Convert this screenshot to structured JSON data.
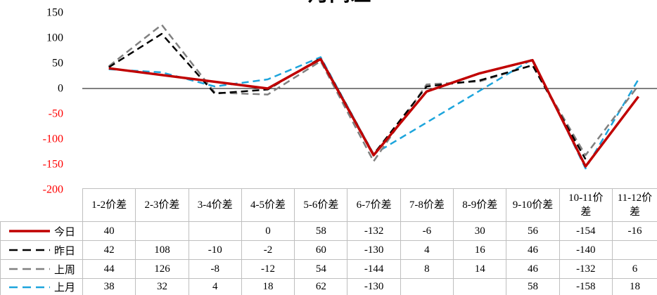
{
  "chart_data": {
    "type": "line",
    "title": "月间差",
    "categories": [
      "1-2价差",
      "2-3价差",
      "3-4价差",
      "4-5价差",
      "5-6价差",
      "6-7价差",
      "7-8价差",
      "8-9价差",
      "9-10价差",
      "10-11价差",
      "11-12价差"
    ],
    "series": [
      {
        "name": "今日",
        "values": [
          40,
          null,
          null,
          0,
          58,
          -132,
          -6,
          30,
          56,
          -154,
          -16
        ],
        "color": "#c00000",
        "style": "solid"
      },
      {
        "name": "昨日",
        "values": [
          42,
          108,
          -10,
          -2,
          60,
          -130,
          4,
          16,
          46,
          -140,
          null
        ],
        "color": "#000000",
        "style": "dashed"
      },
      {
        "name": "上周",
        "values": [
          44,
          126,
          -8,
          -12,
          54,
          -144,
          8,
          14,
          46,
          -132,
          6
        ],
        "color": "#808080",
        "style": "dashed"
      },
      {
        "name": "上月",
        "values": [
          38,
          32,
          4,
          18,
          62,
          -130,
          null,
          null,
          58,
          -158,
          18
        ],
        "color": "#1da5dc",
        "style": "dashed"
      }
    ],
    "ylim": [
      -200,
      150
    ],
    "yticks": [
      150,
      100,
      50,
      0,
      -50,
      -100,
      -150,
      -200
    ],
    "negative_tick_color": "#ff0000",
    "grid": false,
    "legend": "bottom"
  }
}
